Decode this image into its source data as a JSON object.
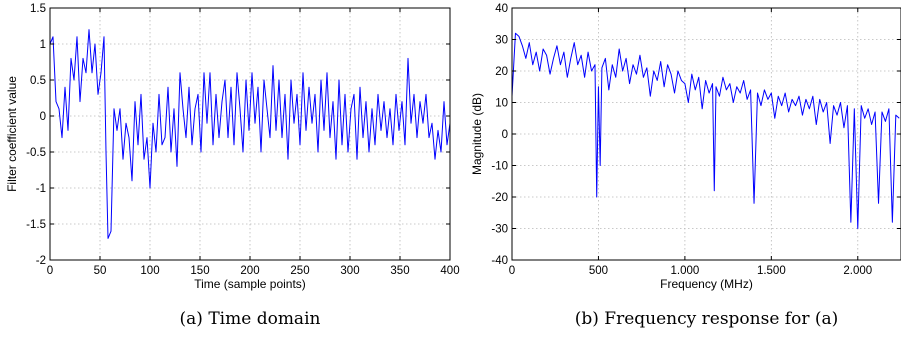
{
  "colors": {
    "series": "#0000ff",
    "axis": "#000000",
    "grid": "#b8b8b8"
  },
  "chart_data": [
    {
      "id": "time",
      "type": "line",
      "caption": "(a) Time domain",
      "xlabel": "Time (sample points)",
      "ylabel": "Filter coefficient value",
      "xlim": [
        0,
        400
      ],
      "ylim": [
        -2,
        1.5
      ],
      "grid": true,
      "xticks": [
        0,
        50,
        100,
        150,
        200,
        250,
        300,
        350,
        400
      ],
      "xtick_labels": [
        "0",
        "50",
        "100",
        "150",
        "200",
        "250",
        "300",
        "350",
        "400"
      ],
      "yticks": [
        -2,
        -1.5,
        -1,
        -0.5,
        0,
        0.5,
        1,
        1.5
      ],
      "ytick_labels": [
        "-2",
        "-1.5",
        "-1",
        "-0.5",
        "0",
        "0.5",
        "1",
        "1.5"
      ],
      "series": [
        {
          "x": [
            0,
            3,
            6,
            9,
            12,
            15,
            18,
            21,
            24,
            27,
            30,
            33,
            36,
            39,
            42,
            45,
            48,
            51,
            54,
            56,
            58,
            61,
            64,
            67,
            70,
            73,
            76,
            79,
            82,
            85,
            88,
            91,
            94,
            97,
            100,
            103,
            106,
            109,
            112,
            115,
            118,
            121,
            124,
            127,
            130,
            133,
            136,
            139,
            142,
            145,
            148,
            151,
            154,
            157,
            160,
            163,
            166,
            169,
            172,
            175,
            178,
            181,
            184,
            187,
            190,
            193,
            196,
            199,
            202,
            205,
            208,
            211,
            214,
            217,
            220,
            223,
            226,
            229,
            232,
            235,
            238,
            241,
            244,
            247,
            250,
            253,
            256,
            259,
            262,
            265,
            268,
            271,
            274,
            277,
            280,
            283,
            286,
            289,
            292,
            295,
            298,
            301,
            304,
            307,
            310,
            313,
            316,
            319,
            322,
            325,
            328,
            331,
            334,
            337,
            340,
            343,
            346,
            349,
            352,
            355,
            358,
            361,
            364,
            367,
            370,
            373,
            376,
            379,
            382,
            385,
            388,
            391,
            394,
            397,
            400
          ],
          "y": [
            1.0,
            1.1,
            0.2,
            0.1,
            -0.3,
            0.4,
            -0.2,
            0.8,
            0.5,
            1.1,
            0.2,
            0.8,
            0.6,
            1.2,
            0.6,
            1.0,
            0.3,
            0.6,
            1.1,
            -0.5,
            -1.7,
            -1.6,
            0.1,
            -0.2,
            0.1,
            -0.6,
            -0.1,
            -0.3,
            -0.9,
            0.2,
            -0.4,
            0.3,
            -0.6,
            -0.3,
            -1.0,
            -0.1,
            -0.5,
            0.3,
            -0.4,
            -0.3,
            0.4,
            -0.5,
            0.1,
            -0.7,
            0.6,
            0.1,
            -0.3,
            0.4,
            -0.4,
            0.1,
            0.3,
            -0.5,
            0.6,
            -0.1,
            0.6,
            -0.4,
            0.3,
            -0.3,
            0.2,
            0.5,
            -0.3,
            0.4,
            -0.4,
            0.6,
            0.1,
            -0.5,
            0.5,
            -0.2,
            0.6,
            -0.1,
            0.4,
            -0.5,
            0.5,
            0.1,
            -0.3,
            0.7,
            -0.2,
            0.5,
            -0.3,
            0.3,
            -0.6,
            0.5,
            -0.1,
            0.3,
            -0.4,
            0.6,
            -0.2,
            0.4,
            -0.1,
            0.3,
            -0.5,
            0.5,
            -0.2,
            0.6,
            -0.3,
            0.2,
            -0.6,
            0.5,
            -0.4,
            0.3,
            -0.5,
            0.1,
            0.3,
            -0.6,
            0.4,
            -0.3,
            0.2,
            -0.5,
            0.1,
            -0.4,
            0.3,
            -0.2,
            0.2,
            -0.3,
            0.1,
            -0.4,
            0.3,
            -0.2,
            0.2,
            -0.4,
            0.8,
            -0.1,
            0.3,
            -0.3,
            0.2,
            -0.1,
            0.3,
            -0.3,
            -0.1,
            -0.6,
            -0.2,
            -0.5,
            0.2,
            -0.4,
            -0.1
          ]
        }
      ]
    },
    {
      "id": "freq",
      "type": "line",
      "caption": "(b) Frequency response for (a)",
      "xlabel": "Frequency (MHz)",
      "ylabel": "Magnitude (dB)",
      "xlim": [
        0,
        2250
      ],
      "ylim": [
        -40,
        40
      ],
      "grid": true,
      "xticks": [
        0,
        500,
        1000,
        1500,
        2000
      ],
      "xtick_labels": [
        "0",
        "500",
        "1.000",
        "1.500",
        "2.000"
      ],
      "yticks": [
        -40,
        -30,
        -20,
        -10,
        0,
        10,
        20,
        30,
        40
      ],
      "ytick_labels": [
        "-40",
        "-30",
        "-20",
        "-10",
        "0",
        "10",
        "20",
        "30",
        "40"
      ],
      "series": [
        {
          "x": [
            0,
            20,
            40,
            60,
            80,
            100,
            120,
            140,
            160,
            180,
            200,
            220,
            240,
            260,
            280,
            300,
            320,
            340,
            360,
            380,
            400,
            420,
            440,
            460,
            480,
            490,
            500,
            510,
            520,
            540,
            560,
            580,
            600,
            620,
            640,
            660,
            680,
            700,
            720,
            740,
            760,
            780,
            800,
            820,
            840,
            860,
            880,
            900,
            920,
            940,
            960,
            980,
            1000,
            1020,
            1040,
            1060,
            1080,
            1100,
            1120,
            1140,
            1160,
            1170,
            1180,
            1200,
            1220,
            1240,
            1260,
            1280,
            1300,
            1320,
            1340,
            1360,
            1380,
            1400,
            1420,
            1440,
            1460,
            1480,
            1500,
            1520,
            1540,
            1560,
            1580,
            1600,
            1620,
            1640,
            1660,
            1680,
            1700,
            1720,
            1740,
            1760,
            1780,
            1800,
            1820,
            1840,
            1860,
            1880,
            1900,
            1920,
            1940,
            1960,
            1980,
            2000,
            2020,
            2040,
            2060,
            2080,
            2100,
            2120,
            2140,
            2160,
            2180,
            2200,
            2220,
            2240
          ],
          "y": [
            12,
            32,
            31,
            28,
            24,
            29,
            22,
            26,
            20,
            27,
            25,
            19,
            24,
            28,
            22,
            26,
            18,
            24,
            29,
            22,
            25,
            18,
            26,
            20,
            22,
            -20,
            15,
            -10,
            21,
            24,
            14,
            22,
            18,
            27,
            20,
            24,
            16,
            22,
            19,
            25,
            18,
            21,
            12,
            20,
            17,
            23,
            15,
            22,
            19,
            13,
            20,
            17,
            16,
            10,
            19,
            14,
            18,
            8,
            17,
            13,
            16,
            -18,
            15,
            12,
            18,
            14,
            16,
            10,
            15,
            13,
            17,
            11,
            14,
            -22,
            13,
            9,
            14,
            11,
            13,
            5,
            12,
            9,
            13,
            7,
            11,
            9,
            12,
            6,
            11,
            8,
            12,
            3,
            11,
            7,
            10,
            -3,
            9,
            6,
            10,
            2,
            9,
            -28,
            8,
            -30,
            9,
            5,
            8,
            3,
            7,
            -22,
            7,
            4,
            8,
            -28,
            6,
            5
          ]
        }
      ]
    }
  ]
}
